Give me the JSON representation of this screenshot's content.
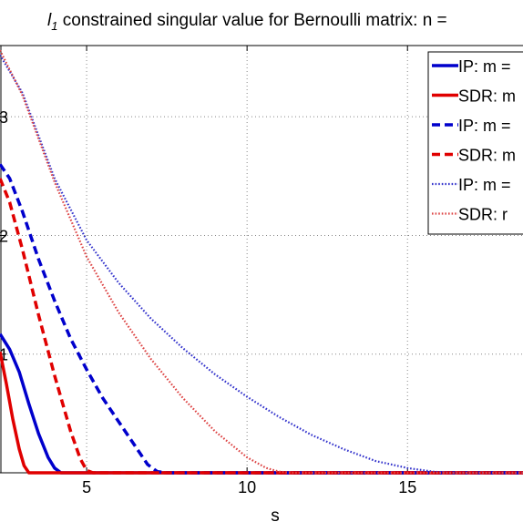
{
  "chart_data": {
    "type": "line",
    "title": {
      "l": "l",
      "sub": "1",
      "rest": " constrained singular value for Bernoulli matrix: n = "
    },
    "xlabel": "s",
    "ylabel": "",
    "xlim": [
      2.3,
      18.6
    ],
    "ylim": [
      0,
      3.6
    ],
    "xticks": [
      5,
      10,
      15
    ],
    "yticks": [
      1,
      2,
      3
    ],
    "grid": true,
    "legend_position": "top-right",
    "series": [
      {
        "name": "IP: m =",
        "color": "#0000cc",
        "style": "solid",
        "points": [
          [
            2.3,
            1.17
          ],
          [
            2.6,
            1.04
          ],
          [
            2.9,
            0.85
          ],
          [
            3.2,
            0.58
          ],
          [
            3.5,
            0.33
          ],
          [
            3.8,
            0.13
          ],
          [
            4.0,
            0.04
          ],
          [
            4.2,
            0.0
          ],
          [
            18.6,
            0.0
          ]
        ]
      },
      {
        "name": "SDR: m",
        "color": "#e00000",
        "style": "solid",
        "points": [
          [
            2.3,
            1.02
          ],
          [
            2.5,
            0.75
          ],
          [
            2.7,
            0.45
          ],
          [
            2.9,
            0.2
          ],
          [
            3.05,
            0.06
          ],
          [
            3.2,
            0.0
          ],
          [
            18.6,
            0.0
          ]
        ]
      },
      {
        "name": "IP: m =",
        "color": "#0000cc",
        "style": "dashed",
        "points": [
          [
            2.3,
            2.6
          ],
          [
            2.6,
            2.48
          ],
          [
            3.0,
            2.2
          ],
          [
            3.5,
            1.8
          ],
          [
            4.0,
            1.45
          ],
          [
            4.5,
            1.13
          ],
          [
            5.0,
            0.87
          ],
          [
            5.5,
            0.63
          ],
          [
            6.0,
            0.43
          ],
          [
            6.5,
            0.23
          ],
          [
            6.9,
            0.07
          ],
          [
            7.2,
            0.01
          ],
          [
            7.5,
            0.0
          ],
          [
            18.6,
            0.0
          ]
        ]
      },
      {
        "name": "SDR: m",
        "color": "#e00000",
        "style": "dashed",
        "points": [
          [
            2.3,
            2.48
          ],
          [
            2.6,
            2.28
          ],
          [
            3.0,
            1.88
          ],
          [
            3.5,
            1.33
          ],
          [
            4.0,
            0.82
          ],
          [
            4.5,
            0.35
          ],
          [
            4.8,
            0.12
          ],
          [
            5.0,
            0.02
          ],
          [
            5.2,
            0.0
          ],
          [
            18.6,
            0.0
          ]
        ]
      },
      {
        "name": "IP: m =",
        "color": "#3333cc",
        "style": "dotted",
        "points": [
          [
            2.3,
            3.52
          ],
          [
            3.0,
            3.2
          ],
          [
            4.0,
            2.48
          ],
          [
            5.0,
            1.96
          ],
          [
            6.0,
            1.6
          ],
          [
            7.0,
            1.3
          ],
          [
            8.0,
            1.05
          ],
          [
            9.0,
            0.83
          ],
          [
            10.0,
            0.64
          ],
          [
            11.0,
            0.47
          ],
          [
            12.0,
            0.32
          ],
          [
            13.0,
            0.2
          ],
          [
            14.0,
            0.1
          ],
          [
            15.0,
            0.04
          ],
          [
            15.8,
            0.01
          ],
          [
            16.3,
            0.0
          ],
          [
            18.6,
            0.0
          ]
        ]
      },
      {
        "name": "SDR: r",
        "color": "#dd4444",
        "style": "dotted",
        "points": [
          [
            2.3,
            3.56
          ],
          [
            3.0,
            3.18
          ],
          [
            4.0,
            2.45
          ],
          [
            5.0,
            1.82
          ],
          [
            6.0,
            1.35
          ],
          [
            7.0,
            0.96
          ],
          [
            8.0,
            0.63
          ],
          [
            9.0,
            0.35
          ],
          [
            10.0,
            0.13
          ],
          [
            10.6,
            0.04
          ],
          [
            11.0,
            0.01
          ],
          [
            11.4,
            0.0
          ],
          [
            18.6,
            0.0
          ]
        ]
      }
    ]
  }
}
